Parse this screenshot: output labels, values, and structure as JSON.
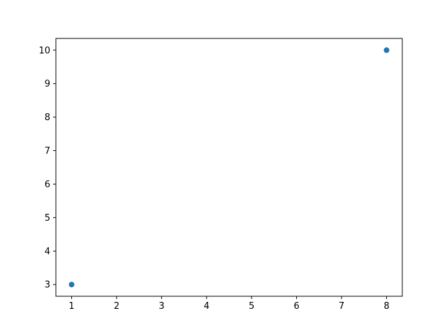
{
  "figure": {
    "background": "#ffffff"
  },
  "chart_data": {
    "type": "scatter",
    "title": "",
    "xlabel": "",
    "ylabel": "",
    "points": [
      {
        "x": 1,
        "y": 3
      },
      {
        "x": 8,
        "y": 10
      }
    ],
    "marker_color": "#1f77b4",
    "axis_color": "#000000",
    "x_ticks": [
      "1",
      "2",
      "3",
      "4",
      "5",
      "6",
      "7",
      "8"
    ],
    "y_ticks": [
      "3",
      "4",
      "5",
      "6",
      "7",
      "8",
      "9",
      "10"
    ],
    "xlim": [
      0.65,
      8.35
    ],
    "ylim": [
      2.65,
      10.35
    ],
    "grid": false,
    "legend": "none"
  }
}
